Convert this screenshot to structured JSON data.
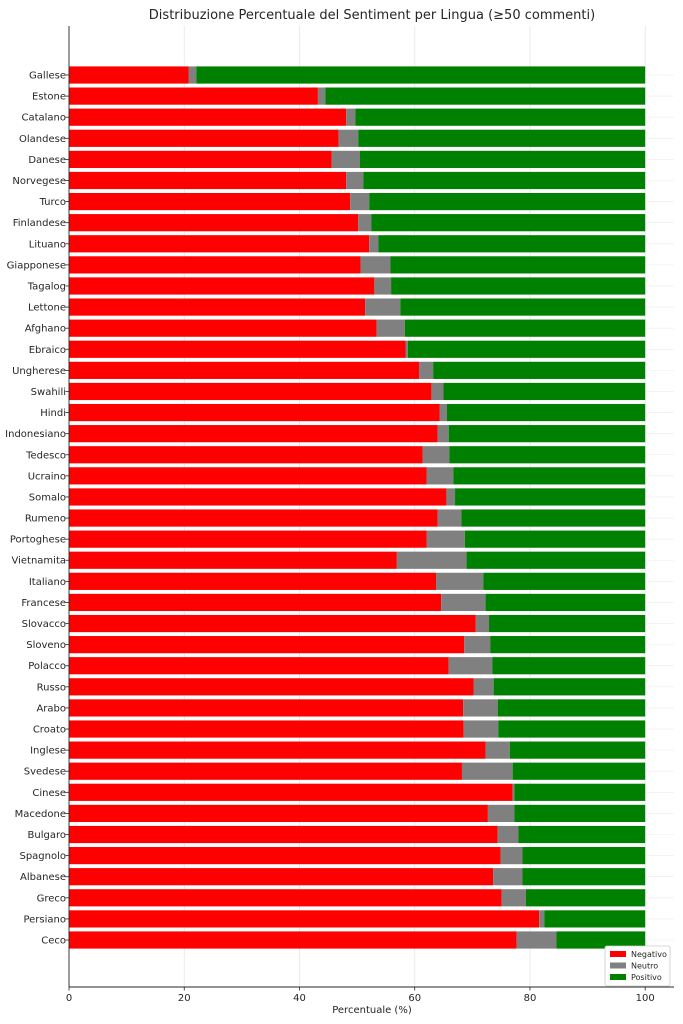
{
  "chart_data": {
    "type": "bar",
    "orientation": "horizontal",
    "stacked": true,
    "title": "Distribuzione Percentuale del Sentiment per Lingua (≥50 commenti)",
    "xlabel": "Percentuale (%)",
    "ylabel": "",
    "xlim": [
      0,
      105
    ],
    "xticks": [
      0,
      20,
      40,
      60,
      80,
      100
    ],
    "grid": true,
    "legend_position": "bottom-right",
    "categories": [
      "Gallese",
      "Estone",
      "Catalano",
      "Olandese",
      "Danese",
      "Norvegese",
      "Turco",
      "Finlandese",
      "Lituano",
      "Giapponese",
      "Tagalog",
      "Lettone",
      "Afghano",
      "Ebraico",
      "Ungherese",
      "Swahili",
      "Hindi",
      "Indonesiano",
      "Tedesco",
      "Ucraino",
      "Somalo",
      "Rumeno",
      "Portoghese",
      "Vietnamita",
      "Italiano",
      "Francese",
      "Slovacco",
      "Sloveno",
      "Polacco",
      "Russo",
      "Arabo",
      "Croato",
      "Inglese",
      "Svedese",
      "Cinese",
      "Macedone",
      "Bulgaro",
      "Spagnolo",
      "Albanese",
      "Greco",
      "Persiano",
      "Ceco"
    ],
    "series": [
      {
        "name": "Negativo",
        "color": "#ff0000",
        "values": [
          20.8,
          43.2,
          48.1,
          46.8,
          45.6,
          48.1,
          48.8,
          50.2,
          52.1,
          50.6,
          53.0,
          51.4,
          53.4,
          58.4,
          60.8,
          62.9,
          64.3,
          64.0,
          61.4,
          62.1,
          65.5,
          64.0,
          62.1,
          56.9,
          63.7,
          64.6,
          70.6,
          68.6,
          65.9,
          70.2,
          68.4,
          68.5,
          72.3,
          68.2,
          77.0,
          72.7,
          74.4,
          74.9,
          73.6,
          75.1,
          81.6,
          77.7
        ]
      },
      {
        "name": "Neutro",
        "color": "#808080",
        "values": [
          1.3,
          1.3,
          1.6,
          3.4,
          4.9,
          3.0,
          3.3,
          2.3,
          1.6,
          5.2,
          2.9,
          6.1,
          4.9,
          0.4,
          2.4,
          2.1,
          1.3,
          1.9,
          4.6,
          4.6,
          1.5,
          4.1,
          6.6,
          12.1,
          8.2,
          7.7,
          2.3,
          4.5,
          7.6,
          3.5,
          6.0,
          6.0,
          4.2,
          8.8,
          0.3,
          4.6,
          3.6,
          3.8,
          5.1,
          4.2,
          0.9,
          6.9
        ]
      },
      {
        "name": "Positivo",
        "color": "#008000",
        "values": [
          77.9,
          55.5,
          50.3,
          49.8,
          49.5,
          48.9,
          47.9,
          47.5,
          46.3,
          44.2,
          44.1,
          42.5,
          41.7,
          41.2,
          36.8,
          35.0,
          34.4,
          34.1,
          34.0,
          33.3,
          33.0,
          31.9,
          31.3,
          31.0,
          28.1,
          27.7,
          27.1,
          26.9,
          26.5,
          26.3,
          25.6,
          25.5,
          23.5,
          23.0,
          22.7,
          22.7,
          22.0,
          21.3,
          21.3,
          20.7,
          17.5,
          15.4
        ]
      }
    ]
  }
}
